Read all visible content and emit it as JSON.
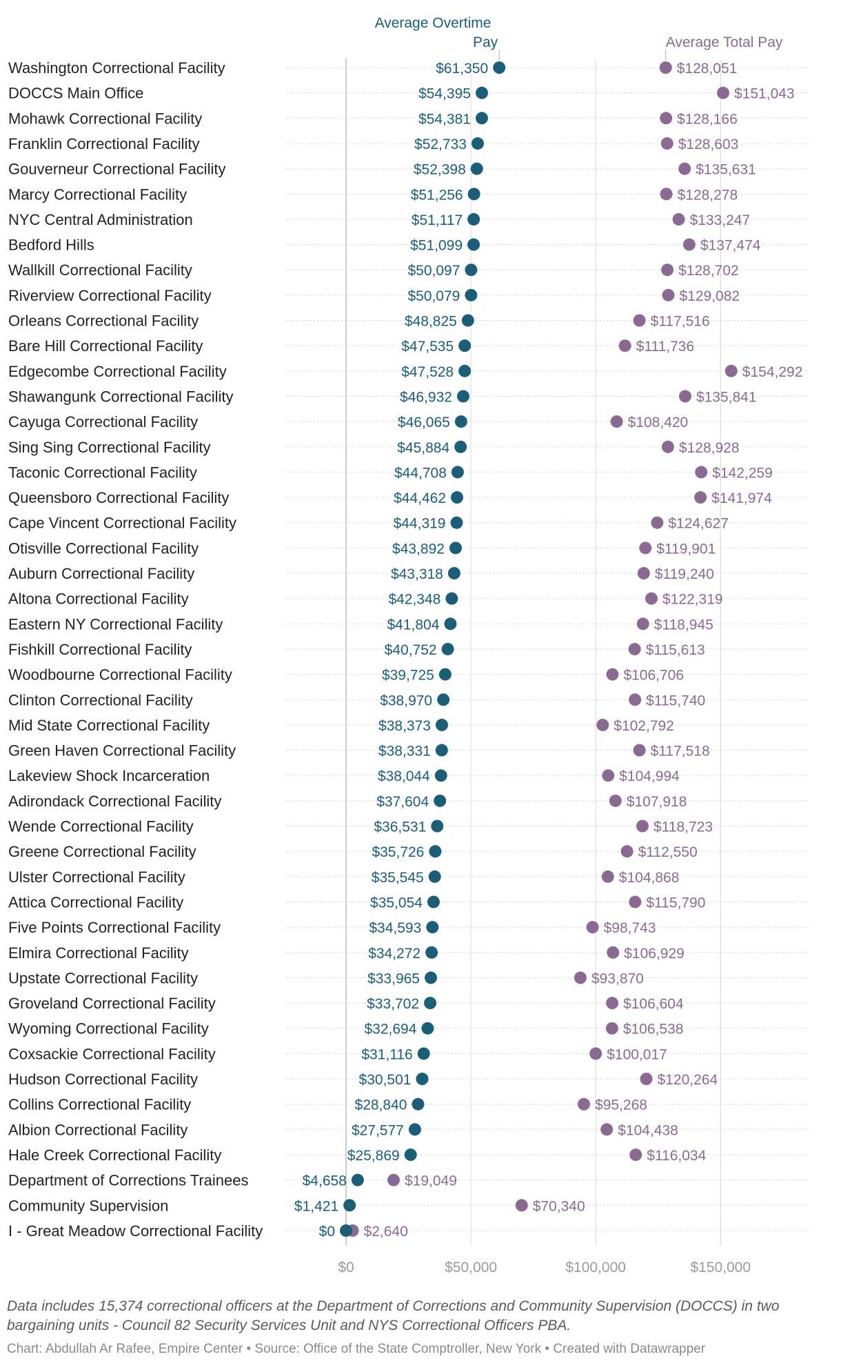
{
  "chart_data": {
    "type": "dot-range",
    "legend": {
      "overtime_label": "Average Overtime Pay",
      "total_label": "Average Total Pay"
    },
    "colors": {
      "overtime": "#1b5e78",
      "total": "#8a6a92",
      "bar_start": "#8fb3c2",
      "bar_end": "#c3afc8",
      "label_text": "#222222",
      "axis_text": "#9a9a9a",
      "grid": "#d6d6d6"
    },
    "xlim": [
      0,
      185000
    ],
    "x_ticks": [
      0,
      50000,
      100000,
      150000
    ],
    "x_tick_labels": [
      "$0",
      "$50,000",
      "$100,000",
      "$150,000"
    ],
    "rows": [
      {
        "name": "Washington Correctional Facility",
        "overtime": 61350,
        "total": 128051,
        "overtime_label": "$61,350",
        "total_label": "$128,051"
      },
      {
        "name": "DOCCS Main Office",
        "overtime": 54395,
        "total": 151043,
        "overtime_label": "$54,395",
        "total_label": "$151,043"
      },
      {
        "name": "Mohawk Correctional Facility",
        "overtime": 54381,
        "total": 128166,
        "overtime_label": "$54,381",
        "total_label": "$128,166"
      },
      {
        "name": "Franklin Correctional Facility",
        "overtime": 52733,
        "total": 128603,
        "overtime_label": "$52,733",
        "total_label": "$128,603"
      },
      {
        "name": "Gouverneur Correctional Facility",
        "overtime": 52398,
        "total": 135631,
        "overtime_label": "$52,398",
        "total_label": "$135,631"
      },
      {
        "name": "Marcy Correctional Facility",
        "overtime": 51256,
        "total": 128278,
        "overtime_label": "$51,256",
        "total_label": "$128,278"
      },
      {
        "name": "NYC Central Administration",
        "overtime": 51117,
        "total": 133247,
        "overtime_label": "$51,117",
        "total_label": "$133,247"
      },
      {
        "name": "Bedford Hills",
        "overtime": 51099,
        "total": 137474,
        "overtime_label": "$51,099",
        "total_label": "$137,474"
      },
      {
        "name": "Wallkill Correctional Facility",
        "overtime": 50097,
        "total": 128702,
        "overtime_label": "$50,097",
        "total_label": "$128,702"
      },
      {
        "name": "Riverview Correctional Facility",
        "overtime": 50079,
        "total": 129082,
        "overtime_label": "$50,079",
        "total_label": "$129,082"
      },
      {
        "name": "Orleans Correctional Facility",
        "overtime": 48825,
        "total": 117516,
        "overtime_label": "$48,825",
        "total_label": "$117,516"
      },
      {
        "name": "Bare Hill Correctional Facility",
        "overtime": 47535,
        "total": 111736,
        "overtime_label": "$47,535",
        "total_label": "$111,736"
      },
      {
        "name": "Edgecombe Correctional Facility",
        "overtime": 47528,
        "total": 154292,
        "overtime_label": "$47,528",
        "total_label": "$154,292"
      },
      {
        "name": "Shawangunk Correctional Facility",
        "overtime": 46932,
        "total": 135841,
        "overtime_label": "$46,932",
        "total_label": "$135,841"
      },
      {
        "name": "Cayuga Correctional Facility",
        "overtime": 46065,
        "total": 108420,
        "overtime_label": "$46,065",
        "total_label": "$108,420"
      },
      {
        "name": "Sing Sing Correctional Facility",
        "overtime": 45884,
        "total": 128928,
        "overtime_label": "$45,884",
        "total_label": "$128,928"
      },
      {
        "name": "Taconic Correctional Facility",
        "overtime": 44708,
        "total": 142259,
        "overtime_label": "$44,708",
        "total_label": "$142,259"
      },
      {
        "name": "Queensboro Correctional Facility",
        "overtime": 44462,
        "total": 141974,
        "overtime_label": "$44,462",
        "total_label": "$141,974"
      },
      {
        "name": "Cape Vincent Correctional Facility",
        "overtime": 44319,
        "total": 124627,
        "overtime_label": "$44,319",
        "total_label": "$124,627"
      },
      {
        "name": "Otisville Correctional Facility",
        "overtime": 43892,
        "total": 119901,
        "overtime_label": "$43,892",
        "total_label": "$119,901"
      },
      {
        "name": "Auburn Correctional Facility",
        "overtime": 43318,
        "total": 119240,
        "overtime_label": "$43,318",
        "total_label": "$119,240"
      },
      {
        "name": "Altona Correctional Facility",
        "overtime": 42348,
        "total": 122319,
        "overtime_label": "$42,348",
        "total_label": "$122,319"
      },
      {
        "name": "Eastern NY Correctional Facility",
        "overtime": 41804,
        "total": 118945,
        "overtime_label": "$41,804",
        "total_label": "$118,945"
      },
      {
        "name": "Fishkill Correctional Facility",
        "overtime": 40752,
        "total": 115613,
        "overtime_label": "$40,752",
        "total_label": "$115,613"
      },
      {
        "name": "Woodbourne Correctional Facility",
        "overtime": 39725,
        "total": 106706,
        "overtime_label": "$39,725",
        "total_label": "$106,706"
      },
      {
        "name": "Clinton Correctional Facility",
        "overtime": 38970,
        "total": 115740,
        "overtime_label": "$38,970",
        "total_label": "$115,740"
      },
      {
        "name": "Mid State Correctional Facility",
        "overtime": 38373,
        "total": 102792,
        "overtime_label": "$38,373",
        "total_label": "$102,792"
      },
      {
        "name": "Green Haven Correctional Facility",
        "overtime": 38331,
        "total": 117518,
        "overtime_label": "$38,331",
        "total_label": "$117,518"
      },
      {
        "name": "Lakeview Shock Incarceration",
        "overtime": 38044,
        "total": 104994,
        "overtime_label": "$38,044",
        "total_label": "$104,994"
      },
      {
        "name": "Adirondack Correctional Facility",
        "overtime": 37604,
        "total": 107918,
        "overtime_label": "$37,604",
        "total_label": "$107,918"
      },
      {
        "name": "Wende Correctional Facility",
        "overtime": 36531,
        "total": 118723,
        "overtime_label": "$36,531",
        "total_label": "$118,723"
      },
      {
        "name": "Greene Correctional Facility",
        "overtime": 35726,
        "total": 112550,
        "overtime_label": "$35,726",
        "total_label": "$112,550"
      },
      {
        "name": "Ulster Correctional Facility",
        "overtime": 35545,
        "total": 104868,
        "overtime_label": "$35,545",
        "total_label": "$104,868"
      },
      {
        "name": "Attica Correctional Facility",
        "overtime": 35054,
        "total": 115790,
        "overtime_label": "$35,054",
        "total_label": "$115,790"
      },
      {
        "name": "Five Points Correctional Facility",
        "overtime": 34593,
        "total": 98743,
        "overtime_label": "$34,593",
        "total_label": "$98,743"
      },
      {
        "name": "Elmira Correctional Facility",
        "overtime": 34272,
        "total": 106929,
        "overtime_label": "$34,272",
        "total_label": "$106,929"
      },
      {
        "name": "Upstate Correctional Facility",
        "overtime": 33965,
        "total": 93870,
        "overtime_label": "$33,965",
        "total_label": "$93,870"
      },
      {
        "name": "Groveland Correctional Facility",
        "overtime": 33702,
        "total": 106604,
        "overtime_label": "$33,702",
        "total_label": "$106,604"
      },
      {
        "name": "Wyoming Correctional Facility",
        "overtime": 32694,
        "total": 106538,
        "overtime_label": "$32,694",
        "total_label": "$106,538"
      },
      {
        "name": "Coxsackie Correctional Facility",
        "overtime": 31116,
        "total": 100017,
        "overtime_label": "$31,116",
        "total_label": "$100,017"
      },
      {
        "name": "Hudson Correctional Facility",
        "overtime": 30501,
        "total": 120264,
        "overtime_label": "$30,501",
        "total_label": "$120,264"
      },
      {
        "name": "Collins Correctional Facility",
        "overtime": 28840,
        "total": 95268,
        "overtime_label": "$28,840",
        "total_label": "$95,268"
      },
      {
        "name": "Albion Correctional Facility",
        "overtime": 27577,
        "total": 104438,
        "overtime_label": "$27,577",
        "total_label": "$104,438"
      },
      {
        "name": "Hale Creek Correctional Facility",
        "overtime": 25869,
        "total": 116034,
        "overtime_label": "$25,869",
        "total_label": "$116,034"
      },
      {
        "name": "Department of Corrections Trainees",
        "overtime": 4658,
        "total": 19049,
        "overtime_label": "$4,658",
        "total_label": "$19,049"
      },
      {
        "name": "Community Supervision",
        "overtime": 1421,
        "total": 70340,
        "overtime_label": "$1,421",
        "total_label": "$70,340"
      },
      {
        "name": "I - Great Meadow Correctional Facility",
        "overtime": 0,
        "total": 2640,
        "overtime_label": "$0",
        "total_label": "$2,640"
      }
    ]
  },
  "footer": {
    "note": "Data includes 15,374 correctional officers at the Department of Corrections and Community Supervision (DOCCS) in two bargaining units - Council 82 Security Services Unit and NYS Correctional Officers PBA.",
    "credit": "Chart: Abdullah Ar Rafee, Empire Center • Source: Office of the State Comptroller, New York • Created with Datawrapper"
  }
}
